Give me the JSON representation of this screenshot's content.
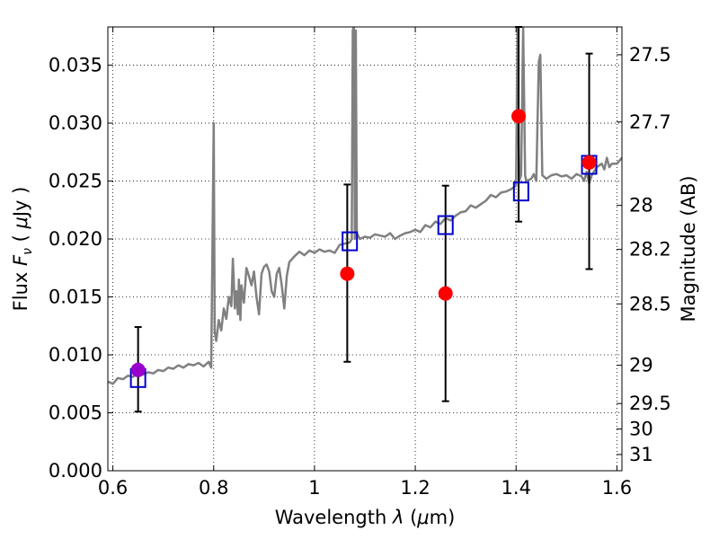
{
  "chart_data": {
    "type": "scatter",
    "xlabel_parts": {
      "pre": "Wavelength  ",
      "sym": "λ",
      "post": " (",
      "mu": "μ",
      "unit": "m)"
    },
    "ylabel_parts": {
      "pre": "Flux  ",
      "sym": "F",
      "sub": "ν",
      "post": "  ( ",
      "mu": "μ",
      "unit": "Jy )"
    },
    "y2label": "Magnitude (AB)",
    "xlim": [
      0.59,
      1.61
    ],
    "ylim": [
      0.0,
      0.0383
    ],
    "xticks": [
      {
        "v": 0.6,
        "t": "0.6"
      },
      {
        "v": 0.8,
        "t": "0.8"
      },
      {
        "v": 1.0,
        "t": "1"
      },
      {
        "v": 1.2,
        "t": "1.2"
      },
      {
        "v": 1.4,
        "t": "1.4"
      },
      {
        "v": 1.6,
        "t": "1.6"
      }
    ],
    "yticks": [
      {
        "v": 0.0,
        "t": "0.000"
      },
      {
        "v": 0.005,
        "t": "0.005"
      },
      {
        "v": 0.01,
        "t": "0.010"
      },
      {
        "v": 0.015,
        "t": "0.015"
      },
      {
        "v": 0.02,
        "t": "0.020"
      },
      {
        "v": 0.025,
        "t": "0.025"
      },
      {
        "v": 0.03,
        "t": "0.030"
      },
      {
        "v": 0.035,
        "t": "0.035"
      }
    ],
    "y2ticks": [
      {
        "v": 0.0359,
        "t": "27.5"
      },
      {
        "v": 0.0301,
        "t": "27.7"
      },
      {
        "v": 0.0229,
        "t": "28"
      },
      {
        "v": 0.0191,
        "t": "28.2"
      },
      {
        "v": 0.0144,
        "t": "28.5"
      },
      {
        "v": 0.0091,
        "t": "29"
      },
      {
        "v": 0.0058,
        "t": "29.5"
      },
      {
        "v": 0.0036,
        "t": "30"
      },
      {
        "v": 0.0014,
        "t": "31"
      }
    ],
    "grid": true,
    "colors": {
      "spectrum": "#808080",
      "observed": "#ff0000",
      "model": "#0000cc",
      "optical": "#9900cc",
      "errorbar": "#000000"
    },
    "spectrum": [
      [
        0.59,
        0.0077
      ],
      [
        0.6,
        0.0075
      ],
      [
        0.61,
        0.008
      ],
      [
        0.62,
        0.0079
      ],
      [
        0.63,
        0.0082
      ],
      [
        0.64,
        0.0081
      ],
      [
        0.65,
        0.0084
      ],
      [
        0.66,
        0.0083
      ],
      [
        0.67,
        0.0085
      ],
      [
        0.68,
        0.0084
      ],
      [
        0.69,
        0.0087
      ],
      [
        0.7,
        0.0086
      ],
      [
        0.71,
        0.0089
      ],
      [
        0.72,
        0.0088
      ],
      [
        0.73,
        0.0091
      ],
      [
        0.74,
        0.0089
      ],
      [
        0.75,
        0.0092
      ],
      [
        0.76,
        0.0091
      ],
      [
        0.77,
        0.0093
      ],
      [
        0.78,
        0.009
      ],
      [
        0.79,
        0.0094
      ],
      [
        0.795,
        0.0089
      ],
      [
        0.8,
        0.03
      ],
      [
        0.802,
        0.012
      ],
      [
        0.805,
        0.0112
      ],
      [
        0.81,
        0.013
      ],
      [
        0.815,
        0.0121
      ],
      [
        0.82,
        0.014
      ],
      [
        0.825,
        0.0131
      ],
      [
        0.83,
        0.015
      ],
      [
        0.835,
        0.0142
      ],
      [
        0.838,
        0.0183
      ],
      [
        0.842,
        0.014
      ],
      [
        0.845,
        0.0155
      ],
      [
        0.848,
        0.0135
      ],
      [
        0.85,
        0.0165
      ],
      [
        0.853,
        0.013
      ],
      [
        0.855,
        0.016
      ],
      [
        0.86,
        0.0145
      ],
      [
        0.865,
        0.0175
      ],
      [
        0.87,
        0.0168
      ],
      [
        0.875,
        0.016
      ],
      [
        0.88,
        0.0172
      ],
      [
        0.885,
        0.015
      ],
      [
        0.89,
        0.0135
      ],
      [
        0.895,
        0.017
      ],
      [
        0.9,
        0.0176
      ],
      [
        0.905,
        0.0178
      ],
      [
        0.91,
        0.0172
      ],
      [
        0.915,
        0.0155
      ],
      [
        0.92,
        0.015
      ],
      [
        0.925,
        0.017
      ],
      [
        0.93,
        0.0175
      ],
      [
        0.935,
        0.016
      ],
      [
        0.94,
        0.014
      ],
      [
        0.945,
        0.0168
      ],
      [
        0.95,
        0.018
      ],
      [
        0.96,
        0.0185
      ],
      [
        0.97,
        0.0189
      ],
      [
        0.98,
        0.0186
      ],
      [
        0.99,
        0.019
      ],
      [
        1.0,
        0.0188
      ],
      [
        1.01,
        0.0191
      ],
      [
        1.02,
        0.0189
      ],
      [
        1.03,
        0.019
      ],
      [
        1.04,
        0.0188
      ],
      [
        1.05,
        0.0195
      ],
      [
        1.06,
        0.0196
      ],
      [
        1.07,
        0.0197
      ],
      [
        1.074,
        0.02
      ],
      [
        1.076,
        0.038
      ],
      [
        1.078,
        0.0383
      ],
      [
        1.08,
        0.02
      ],
      [
        1.082,
        0.038
      ],
      [
        1.084,
        0.0205
      ],
      [
        1.09,
        0.02
      ],
      [
        1.1,
        0.0202
      ],
      [
        1.11,
        0.0201
      ],
      [
        1.12,
        0.0204
      ],
      [
        1.13,
        0.0203
      ],
      [
        1.14,
        0.0202
      ],
      [
        1.15,
        0.0205
      ],
      [
        1.16,
        0.02
      ],
      [
        1.17,
        0.0203
      ],
      [
        1.18,
        0.0205
      ],
      [
        1.19,
        0.0206
      ],
      [
        1.2,
        0.0208
      ],
      [
        1.21,
        0.0206
      ],
      [
        1.22,
        0.0212
      ],
      [
        1.23,
        0.021
      ],
      [
        1.24,
        0.0215
      ],
      [
        1.25,
        0.0213
      ],
      [
        1.26,
        0.0218
      ],
      [
        1.27,
        0.0216
      ],
      [
        1.28,
        0.022
      ],
      [
        1.29,
        0.0223
      ],
      [
        1.3,
        0.0224
      ],
      [
        1.31,
        0.0229
      ],
      [
        1.32,
        0.0227
      ],
      [
        1.33,
        0.023
      ],
      [
        1.34,
        0.0233
      ],
      [
        1.35,
        0.0238
      ],
      [
        1.36,
        0.0236
      ],
      [
        1.37,
        0.024
      ],
      [
        1.38,
        0.0241
      ],
      [
        1.39,
        0.0243
      ],
      [
        1.4,
        0.0246
      ],
      [
        1.403,
        0.0383
      ],
      [
        1.406,
        0.025
      ],
      [
        1.41,
        0.0255
      ],
      [
        1.414,
        0.0383
      ],
      [
        1.418,
        0.0255
      ],
      [
        1.42,
        0.025
      ],
      [
        1.43,
        0.0252
      ],
      [
        1.435,
        0.0256
      ],
      [
        1.44,
        0.025
      ],
      [
        1.445,
        0.0353
      ],
      [
        1.448,
        0.0359
      ],
      [
        1.452,
        0.0255
      ],
      [
        1.46,
        0.0252
      ],
      [
        1.47,
        0.0255
      ],
      [
        1.48,
        0.0256
      ],
      [
        1.49,
        0.0254
      ],
      [
        1.5,
        0.0255
      ],
      [
        1.51,
        0.0252
      ],
      [
        1.52,
        0.0256
      ],
      [
        1.53,
        0.0254
      ],
      [
        1.535,
        0.025
      ],
      [
        1.54,
        0.0258
      ],
      [
        1.545,
        0.0248
      ],
      [
        1.55,
        0.0255
      ],
      [
        1.56,
        0.0262
      ],
      [
        1.57,
        0.0265
      ],
      [
        1.575,
        0.026
      ],
      [
        1.58,
        0.027
      ],
      [
        1.585,
        0.0262
      ],
      [
        1.59,
        0.0265
      ],
      [
        1.6,
        0.0265
      ],
      [
        1.61,
        0.027
      ]
    ],
    "observed": [
      {
        "x": 1.065,
        "y": 0.017,
        "lo": 0.0094,
        "hi": 0.0247
      },
      {
        "x": 1.26,
        "y": 0.0153,
        "lo": 0.006,
        "hi": 0.0246
      },
      {
        "x": 1.405,
        "y": 0.0306,
        "lo": 0.0215,
        "hi": 0.0383
      },
      {
        "x": 1.545,
        "y": 0.0266,
        "lo": 0.0174,
        "hi": 0.036
      }
    ],
    "optical": [
      {
        "x": 0.65,
        "y": 0.0087,
        "lo": 0.0051,
        "hi": 0.0124
      }
    ],
    "model": [
      {
        "x": 0.65,
        "y": 0.008
      },
      {
        "x": 1.07,
        "y": 0.0198
      },
      {
        "x": 1.26,
        "y": 0.0212
      },
      {
        "x": 1.41,
        "y": 0.0241
      },
      {
        "x": 1.545,
        "y": 0.0264
      }
    ]
  }
}
